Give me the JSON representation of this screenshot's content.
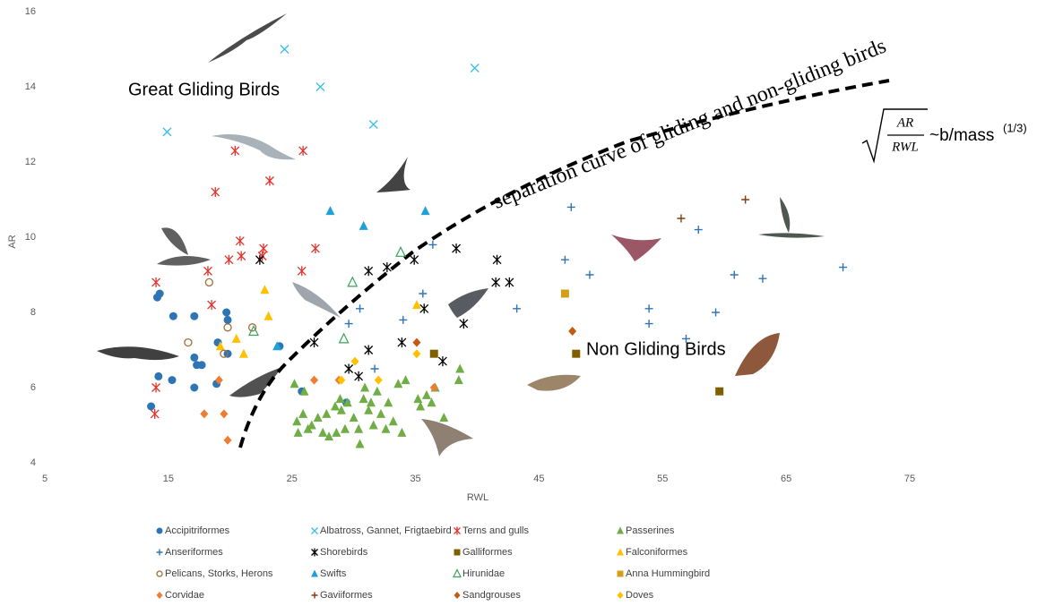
{
  "chart_data": {
    "type": "scatter",
    "xlabel": "RWL",
    "ylabel": "AR",
    "xlim": [
      5,
      75
    ],
    "xticks": [
      5,
      15,
      25,
      35,
      45,
      55,
      65,
      75
    ],
    "ylim": [
      4,
      16
    ],
    "yticks": [
      4,
      6,
      8,
      10,
      12,
      14,
      16
    ],
    "annotations": [
      "Great Gliding Birds",
      "separation curve of gliding and non-gliding birds",
      "Non Gliding Birds"
    ],
    "formula": {
      "numerator": "AR",
      "denominator": "RWL",
      "relation": "~b/mass",
      "exponent": "(1/3)"
    },
    "series": [
      {
        "name": "Accipitriformes",
        "color": "#2e75b6",
        "marker": "circle",
        "x": [
          13.6,
          14.1,
          14.3,
          14.2,
          15.4,
          15.3,
          17.1,
          17.1,
          17.3,
          17.7,
          17.1,
          18.9,
          19.0,
          19.7,
          19.8,
          19.8,
          24.0,
          25.8,
          29.4
        ],
        "y": [
          5.5,
          8.4,
          8.5,
          6.3,
          7.9,
          6.2,
          7.9,
          6.8,
          6.6,
          6.6,
          6.0,
          6.1,
          7.2,
          8.0,
          7.8,
          6.9,
          7.1,
          5.9,
          5.6
        ]
      },
      {
        "name": "Albatross, Gannet, Frigtaebird",
        "color": "#3fbfe8",
        "marker": "x",
        "x": [
          14.9,
          24.4,
          27.3,
          31.6,
          39.8
        ],
        "y": [
          12.8,
          15.0,
          14.0,
          13.0,
          14.5
        ]
      },
      {
        "name": "Terns and gulls",
        "color": "#e8312a",
        "marker": "asterisk",
        "x": [
          14.0,
          14.0,
          13.9,
          18.2,
          18.5,
          18.8,
          19.9,
          20.4,
          20.8,
          20.9,
          22.7,
          22.6,
          23.2,
          25.9,
          25.8,
          26.9
        ],
        "y": [
          8.8,
          6.0,
          5.3,
          9.1,
          8.2,
          11.2,
          9.4,
          12.3,
          9.9,
          9.5,
          9.7,
          9.5,
          11.5,
          12.3,
          9.1,
          9.7
        ]
      },
      {
        "name": "Passerines",
        "color": "#70ad47",
        "marker": "triangle",
        "x": [
          25.4,
          25.5,
          25.9,
          26.0,
          26.3,
          26.6,
          27.1,
          27.5,
          27.8,
          28.0,
          28.5,
          28.6,
          28.9,
          29.0,
          29.3,
          29.5,
          30.0,
          30.4,
          30.5,
          30.8,
          31.2,
          31.6,
          31.9,
          32.2,
          32.6,
          32.8,
          33.2,
          33.6,
          33.9,
          34.2,
          35.2,
          35.4,
          35.9,
          36.3,
          36.6,
          37.3,
          38.6,
          38.5,
          25.2,
          30.9,
          31.4
        ],
        "y": [
          5.1,
          4.8,
          5.3,
          5.9,
          4.9,
          5.0,
          5.2,
          4.8,
          5.3,
          4.7,
          5.5,
          4.8,
          5.7,
          5.4,
          4.9,
          5.6,
          5.2,
          4.9,
          4.5,
          5.7,
          5.4,
          5.0,
          5.9,
          5.3,
          4.9,
          5.6,
          5.1,
          6.1,
          4.8,
          6.2,
          5.7,
          5.5,
          5.8,
          5.6,
          6.0,
          5.2,
          6.5,
          6.2,
          6.1,
          6.0,
          5.6
        ]
      },
      {
        "name": "Anseriformes",
        "color": "#2e75b6",
        "marker": "plus",
        "x": [
          30.5,
          31.7,
          34.0,
          35.6,
          36.4,
          43.2,
          47.1,
          47.6,
          49.1,
          53.9,
          53.9,
          56.9,
          57.9,
          59.3,
          60.8,
          63.1,
          69.6,
          29.6
        ],
        "y": [
          8.1,
          6.5,
          7.8,
          8.5,
          9.8,
          8.1,
          9.4,
          10.8,
          9.0,
          8.1,
          7.7,
          7.3,
          10.2,
          8.0,
          9.0,
          8.9,
          9.2,
          7.7
        ]
      },
      {
        "name": "Shorebirds",
        "color": "#000000",
        "marker": "asterisk",
        "x": [
          22.4,
          26.8,
          29.6,
          30.4,
          31.2,
          31.2,
          32.7,
          33.9,
          34.9,
          35.7,
          38.3,
          37.2,
          38.9,
          41.5,
          41.6,
          42.6
        ],
        "y": [
          9.4,
          7.2,
          6.5,
          6.3,
          9.1,
          7.0,
          9.2,
          7.2,
          9.4,
          8.1,
          9.7,
          6.7,
          7.7,
          8.8,
          9.4,
          8.8
        ]
      },
      {
        "name": "Galliformes",
        "color": "#7f6000",
        "marker": "square",
        "x": [
          36.5,
          48.0,
          59.6
        ],
        "y": [
          6.9,
          6.9,
          5.9
        ]
      },
      {
        "name": "Falconiformes",
        "color": "#ffc000",
        "marker": "triangle",
        "x": [
          19.2,
          20.5,
          21.1,
          22.8,
          23.1,
          35.1
        ],
        "y": [
          7.1,
          7.3,
          6.9,
          8.6,
          7.9,
          8.2
        ]
      },
      {
        "name": "Pelicans, Storks, Herons",
        "color": "#a0703c",
        "marker": "open-circle",
        "x": [
          18.3,
          16.6,
          19.5,
          19.8,
          21.8
        ],
        "y": [
          8.8,
          7.2,
          6.9,
          7.6,
          7.6
        ]
      },
      {
        "name": "Swifts",
        "color": "#1fa0d8",
        "marker": "triangle",
        "x": [
          28.1,
          30.8,
          35.8,
          23.8
        ],
        "y": [
          10.7,
          10.3,
          10.7,
          7.1
        ]
      },
      {
        "name": "Hirunidae",
        "color": "#3aa35a",
        "marker": "open-triangle",
        "x": [
          29.9,
          33.8,
          29.2,
          21.9
        ],
        "y": [
          8.8,
          9.6,
          7.3,
          7.5
        ]
      },
      {
        "name": "Anna Hummingbird",
        "color": "#d4a017",
        "marker": "square",
        "x": [
          47.1
        ],
        "y": [
          8.5
        ]
      },
      {
        "name": "Corvidae",
        "color": "#ed7d31",
        "marker": "diamond",
        "x": [
          17.9,
          19.5,
          19.8,
          19.1,
          26.8,
          28.8,
          36.5
        ],
        "y": [
          5.3,
          5.3,
          4.6,
          6.2,
          6.2,
          6.2,
          6.0
        ]
      },
      {
        "name": "Gaviiformes",
        "color": "#843c0c",
        "marker": "plus",
        "x": [
          56.5,
          61.7
        ],
        "y": [
          10.5,
          11.0
        ]
      },
      {
        "name": "Sandgrouses",
        "color": "#c55a11",
        "marker": "diamond",
        "x": [
          35.1,
          47.7
        ],
        "y": [
          7.2,
          7.5
        ]
      },
      {
        "name": "Doves",
        "color": "#ffc000",
        "marker": "diamond",
        "x": [
          30.1,
          32.0,
          35.1,
          29.0
        ],
        "y": [
          6.7,
          6.2,
          6.9,
          6.2
        ]
      }
    ]
  }
}
